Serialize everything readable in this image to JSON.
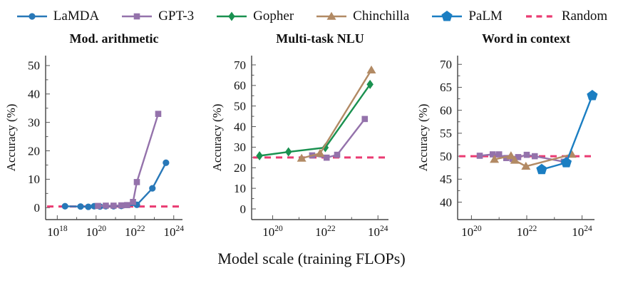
{
  "figure_title": "",
  "xlabel": "Model scale (training FLOPs)",
  "colors": {
    "lamda": "#2878b8",
    "gpt3": "#9472ab",
    "gopher": "#1a9150",
    "chinchilla": "#b28a64",
    "palm": "#1b7ec2",
    "random": "#ea3b72",
    "axis": "#222222",
    "tick": "#555555"
  },
  "legend": {
    "position": "top",
    "items": [
      {
        "label": "LaMDA",
        "marker": "circle",
        "color": "#2878b8"
      },
      {
        "label": "GPT-3",
        "marker": "square",
        "color": "#9472ab"
      },
      {
        "label": "Gopher",
        "marker": "diamond",
        "color": "#1a9150"
      },
      {
        "label": "Chinchilla",
        "marker": "triangle",
        "color": "#b28a64"
      },
      {
        "label": "PaLM",
        "marker": "pentagon",
        "color": "#1b7ec2"
      },
      {
        "label": "Random",
        "marker": "dashed-line",
        "color": "#ea3b72"
      }
    ]
  },
  "chart_data": [
    {
      "type": "line",
      "title": "Mod. arithmetic",
      "ylabel": "Accuracy (%)",
      "x_scale": "log10",
      "grid": false,
      "xlim": [
        17.4,
        24.45
      ],
      "ylim": [
        -4.2,
        53.5
      ],
      "x_ticks": [
        18,
        20,
        22,
        24
      ],
      "x_minor_ticks": [
        19,
        21,
        23
      ],
      "y_ticks": [
        0,
        10,
        20,
        30,
        40,
        50
      ],
      "y_minor_ticks": [
        5,
        15,
        25,
        35,
        45
      ],
      "random_baseline": 0.4,
      "series": [
        {
          "name": "LaMDA",
          "x": [
            18.4,
            19.2,
            19.6,
            19.9,
            20.2,
            20.5,
            20.9,
            21.3,
            22.1,
            22.9,
            23.6
          ],
          "y": [
            0.5,
            0.4,
            0.3,
            0.5,
            0.4,
            0.5,
            0.5,
            0.6,
            1.0,
            6.8,
            15.8
          ]
        },
        {
          "name": "GPT-3",
          "x": [
            20.1,
            20.5,
            20.9,
            21.3,
            21.6,
            21.9,
            22.1,
            23.2
          ],
          "y": [
            0.6,
            0.7,
            0.7,
            0.8,
            0.9,
            2.0,
            9.0,
            33.0
          ]
        }
      ]
    },
    {
      "type": "line",
      "title": "Multi-task NLU",
      "ylabel": "Accuracy (%)",
      "x_scale": "log10",
      "grid": false,
      "xlim": [
        19.2,
        24.4
      ],
      "ylim": [
        -5.2,
        74.5
      ],
      "x_ticks": [
        20,
        22,
        24
      ],
      "x_minor_ticks": [
        21,
        23
      ],
      "y_ticks": [
        0,
        10,
        20,
        30,
        40,
        50,
        60,
        70
      ],
      "y_minor_ticks": [
        5,
        15,
        25,
        35,
        45,
        55,
        65
      ],
      "random_baseline": 25,
      "series": [
        {
          "name": "GPT-3",
          "x": [
            21.5,
            22.05,
            22.45,
            23.5
          ],
          "y": [
            26.0,
            24.9,
            26.3,
            43.7
          ]
        },
        {
          "name": "Gopher",
          "x": [
            19.5,
            20.6,
            22.0,
            23.7
          ],
          "y": [
            25.8,
            27.7,
            29.8,
            60.5
          ]
        },
        {
          "name": "Chinchilla",
          "x": [
            21.1,
            21.8,
            23.75
          ],
          "y": [
            24.6,
            27.0,
            67.5
          ]
        }
      ]
    },
    {
      "type": "line",
      "title": "Word in context",
      "ylabel": "Accuracy (%)",
      "x_scale": "log10",
      "grid": false,
      "xlim": [
        19.5,
        24.45
      ],
      "ylim": [
        36.2,
        71.9
      ],
      "x_ticks": [
        20,
        22,
        24
      ],
      "x_minor_ticks": [
        21,
        23
      ],
      "y_ticks": [
        40,
        45,
        50,
        55,
        60,
        65,
        70
      ],
      "y_minor_ticks": [
        42.5,
        47.5,
        52.5,
        57.5,
        62.5,
        67.5
      ],
      "random_baseline": 50,
      "series": [
        {
          "name": "GPT-3",
          "x": [
            20.3,
            20.77,
            21.0,
            21.26,
            21.49,
            21.69,
            22.0,
            22.29,
            23.34
          ],
          "y": [
            50.1,
            50.4,
            50.4,
            49.6,
            49.4,
            49.8,
            50.3,
            50.0,
            48.8
          ]
        },
        {
          "name": "Chinchilla",
          "x": [
            20.83,
            21.43,
            21.57,
            21.97,
            23.63
          ],
          "y": [
            49.3,
            50.1,
            49.1,
            47.8,
            50.4
          ]
        },
        {
          "name": "PaLM",
          "x": [
            22.54,
            23.43,
            24.37
          ],
          "y": [
            47.1,
            48.6,
            63.2
          ]
        }
      ]
    }
  ]
}
